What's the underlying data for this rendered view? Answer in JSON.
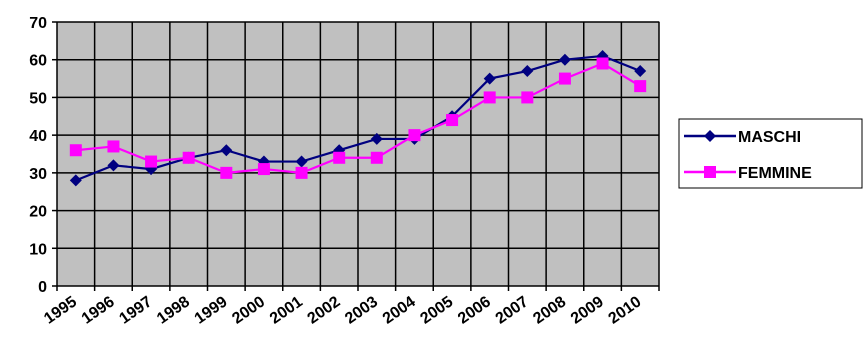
{
  "chart_data": {
    "type": "line",
    "categories": [
      "1995",
      "1996",
      "1997",
      "1998",
      "1999",
      "2000",
      "2001",
      "2002",
      "2003",
      "2004",
      "2005",
      "2006",
      "2007",
      "2008",
      "2009",
      "2010"
    ],
    "series": [
      {
        "name": "MASCHI",
        "color": "#000080",
        "marker": "diamond",
        "values": [
          28,
          32,
          31,
          34,
          36,
          33,
          33,
          36,
          39,
          39,
          45,
          55,
          57,
          60,
          61,
          57
        ]
      },
      {
        "name": "FEMMINE",
        "color": "#ff00ff",
        "marker": "square",
        "values": [
          36,
          37,
          33,
          34,
          30,
          31,
          30,
          34,
          34,
          40,
          44,
          50,
          50,
          55,
          59,
          53
        ]
      }
    ],
    "ylim": [
      0,
      70
    ],
    "yticks": [
      0,
      10,
      20,
      30,
      40,
      50,
      60,
      70
    ],
    "grid": true,
    "plot_background": "#c0c0c0",
    "legend_position": "right"
  }
}
